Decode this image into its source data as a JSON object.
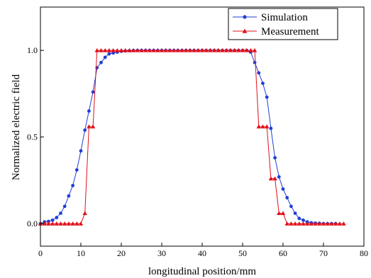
{
  "chart_data": {
    "type": "line",
    "xlabel": "longitudinal position/mm",
    "ylabel": "Normalized electric field",
    "xlim": [
      0,
      80
    ],
    "ylim": [
      -0.13,
      1.25
    ],
    "xticks": [
      0,
      10,
      20,
      30,
      40,
      50,
      60,
      70,
      80
    ],
    "yticks": [
      0.0,
      0.5,
      1.0
    ],
    "ytick_labels": [
      "0.0",
      "0.5",
      "1.0"
    ],
    "grid": false,
    "legend_position": "top-right",
    "series": [
      {
        "name": "Simulation",
        "color": "#1f3fd6",
        "marker": "circle",
        "x": [
          0,
          1,
          2,
          3,
          4,
          5,
          6,
          7,
          8,
          9,
          10,
          11,
          12,
          13,
          14,
          15,
          16,
          17,
          18,
          19,
          20,
          21,
          22,
          23,
          24,
          25,
          26,
          27,
          28,
          29,
          30,
          31,
          32,
          33,
          34,
          35,
          36,
          37,
          38,
          39,
          40,
          41,
          42,
          43,
          44,
          45,
          46,
          47,
          48,
          49,
          50,
          51,
          52,
          53,
          54,
          55,
          56,
          57,
          58,
          59,
          60,
          61,
          62,
          63,
          64,
          65,
          66,
          67,
          68,
          69,
          70,
          71,
          72,
          73
        ],
        "y": [
          0.0,
          0.01,
          0.013,
          0.02,
          0.035,
          0.06,
          0.1,
          0.16,
          0.22,
          0.31,
          0.42,
          0.54,
          0.65,
          0.76,
          0.9,
          0.93,
          0.96,
          0.98,
          0.985,
          0.99,
          0.995,
          0.997,
          0.998,
          0.999,
          1.0,
          1.0,
          1.0,
          1.0,
          1.0,
          1.0,
          1.0,
          1.0,
          1.0,
          1.0,
          1.0,
          1.0,
          1.0,
          1.0,
          1.0,
          1.0,
          1.0,
          1.0,
          1.0,
          1.0,
          1.0,
          1.0,
          1.0,
          1.0,
          1.0,
          1.0,
          1.0,
          1.0,
          0.99,
          0.93,
          0.87,
          0.81,
          0.73,
          0.55,
          0.38,
          0.27,
          0.2,
          0.15,
          0.1,
          0.06,
          0.03,
          0.02,
          0.01,
          0.005,
          0.003,
          0.002,
          0.0,
          0.0,
          0.0,
          0.0
        ]
      },
      {
        "name": "Measurement",
        "color": "#e0101a",
        "marker": "triangle",
        "x": [
          0,
          1,
          2,
          3,
          4,
          5,
          6,
          7,
          8,
          9,
          10,
          11,
          12,
          13,
          14,
          15,
          16,
          17,
          18,
          19,
          20,
          21,
          22,
          23,
          24,
          25,
          26,
          27,
          28,
          29,
          30,
          31,
          32,
          33,
          34,
          35,
          36,
          37,
          38,
          39,
          40,
          41,
          42,
          43,
          44,
          45,
          46,
          47,
          48,
          49,
          50,
          51,
          52,
          53,
          54,
          55,
          56,
          57,
          58,
          59,
          60,
          61,
          62,
          63,
          64,
          65,
          66,
          67,
          68,
          69,
          70,
          71,
          72,
          73,
          74,
          75
        ],
        "y": [
          0,
          0,
          0,
          0,
          0,
          0,
          0,
          0,
          0,
          0,
          0,
          0.06,
          0.56,
          0.56,
          1,
          1,
          1,
          1,
          1,
          1,
          1,
          1,
          1,
          1,
          1,
          1,
          1,
          1,
          1,
          1,
          1,
          1,
          1,
          1,
          1,
          1,
          1,
          1,
          1,
          1,
          1,
          1,
          1,
          1,
          1,
          1,
          1,
          1,
          1,
          1,
          1,
          1,
          1,
          1,
          0.56,
          0.56,
          0.56,
          0.26,
          0.26,
          0.06,
          0.06,
          0,
          0,
          0,
          0,
          0,
          0,
          0,
          0,
          0,
          0,
          0,
          0,
          0,
          0,
          0
        ]
      }
    ]
  }
}
